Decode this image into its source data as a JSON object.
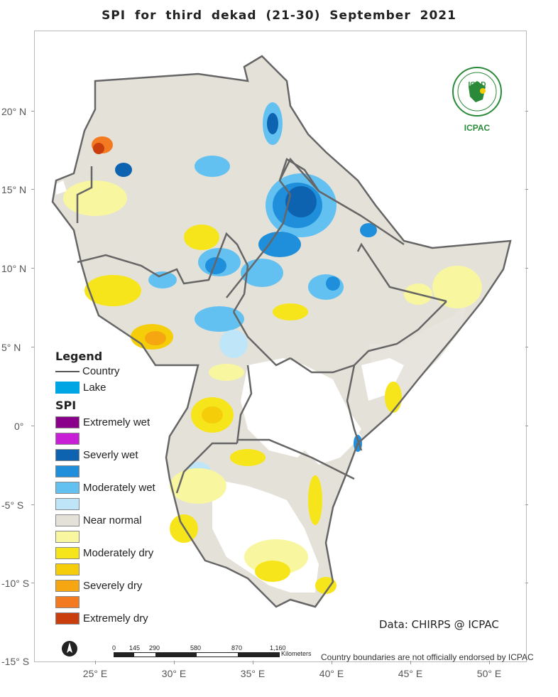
{
  "title": "SPI   for    third  dekad  (21-30) September  2021",
  "lat_labels": [
    "20° N",
    "15° N",
    "10° N",
    "5° N",
    "0°",
    "-5° S",
    "-10° S",
    "-15° S"
  ],
  "lon_labels": [
    "25° E",
    "30° E",
    "35° E",
    "40° E",
    "45° E",
    "50° E"
  ],
  "legend": {
    "title": "Legend",
    "country_label": "Country",
    "lake_label": "Lake",
    "spi_title": "SPI",
    "classes": [
      {
        "label": "Extremely wet",
        "color": "#8b008b"
      },
      {
        "label": "",
        "color": "#c71ed6"
      },
      {
        "label": "Severly wet",
        "color": "#0d63b0"
      },
      {
        "label": "",
        "color": "#1f8fdb"
      },
      {
        "label": "Moderately wet",
        "color": "#63c1f2"
      },
      {
        "label": "",
        "color": "#bfe6f8"
      },
      {
        "label": "Near normal",
        "color": "#e3e1d8"
      },
      {
        "label": "",
        "color": "#f8f7a0"
      },
      {
        "label": "Moderately dry",
        "color": "#f7e51c"
      },
      {
        "label": "",
        "color": "#f5cd08"
      },
      {
        "label": "Severely dry",
        "color": "#f6a610"
      },
      {
        "label": "",
        "color": "#f47a22"
      },
      {
        "label": "Extremely dry",
        "color": "#c93e0c"
      }
    ],
    "lake_color": "#00a5e3"
  },
  "source": "Data: CHIRPS @ ICPAC",
  "scalebar": {
    "ticks": [
      "0",
      "145",
      "290",
      "580",
      "870",
      "1,160"
    ],
    "unit": "Kilometers"
  },
  "disclaimer": "Country boundaries are not officially endorsed by ICPAC",
  "logo": {
    "top_text": "IGAD",
    "bottom_text": "ICPAC"
  }
}
